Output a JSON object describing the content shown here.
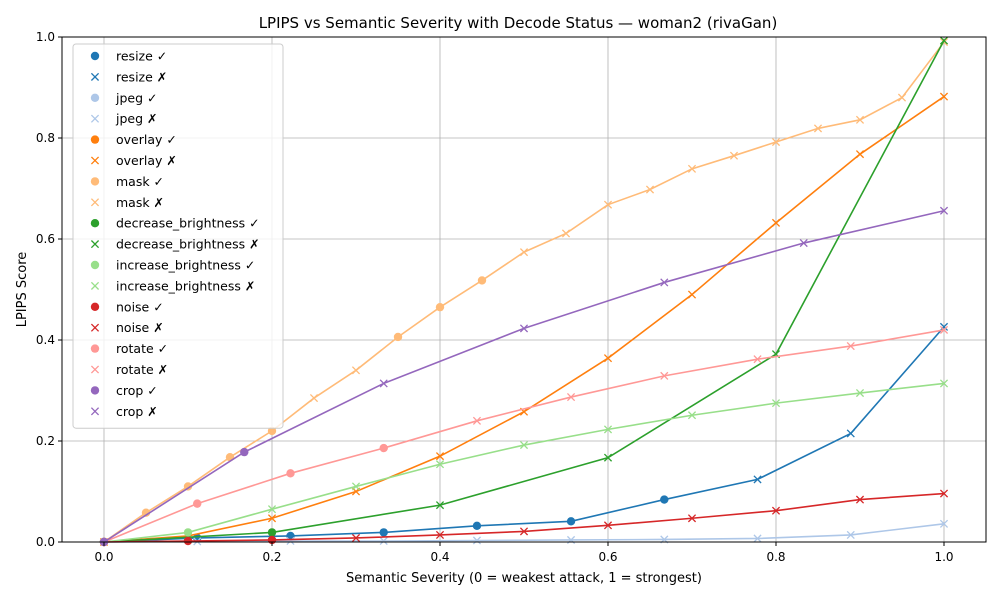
{
  "chart_data": {
    "type": "line",
    "title": "LPIPS vs Semantic Severity with Decode Status — woman2 (rivaGan)",
    "xlabel": "Semantic Severity (0 = weakest attack, 1 = strongest)",
    "ylabel": "LPIPS Score",
    "xlim": [
      -0.05,
      1.05
    ],
    "ylim": [
      0,
      1.0
    ],
    "xticks": [
      "0.0",
      "0.2",
      "0.4",
      "0.6",
      "0.8",
      "1.0"
    ],
    "yticks": [
      "0.0",
      "0.2",
      "0.4",
      "0.6",
      "0.8",
      "1.0"
    ],
    "grid": true,
    "legend_position": "upper-left",
    "series": [
      {
        "name": "resize",
        "color": "#1f77b4",
        "x": [
          0,
          0.111,
          0.222,
          0.333,
          0.444,
          0.556,
          0.667,
          0.778,
          0.889,
          1.0
        ],
        "y": [
          0,
          0.008,
          0.012,
          0.019,
          0.032,
          0.041,
          0.084,
          0.124,
          0.215,
          0.426
        ],
        "decoded": [
          true,
          true,
          true,
          true,
          true,
          true,
          true,
          false,
          false,
          false
        ]
      },
      {
        "name": "jpeg",
        "color": "#aec7e8",
        "x": [
          0,
          0.111,
          0.222,
          0.333,
          0.444,
          0.556,
          0.667,
          0.778,
          0.889,
          1.0
        ],
        "y": [
          0,
          0.001,
          0.002,
          0.002,
          0.003,
          0.004,
          0.005,
          0.007,
          0.014,
          0.036
        ],
        "decoded": [
          true,
          false,
          false,
          false,
          false,
          false,
          false,
          false,
          false,
          false
        ]
      },
      {
        "name": "overlay",
        "color": "#ff7f0e",
        "x": [
          0,
          0.1,
          0.2,
          0.3,
          0.4,
          0.5,
          0.6,
          0.7,
          0.8,
          0.9,
          1.0
        ],
        "y": [
          0,
          0.012,
          0.047,
          0.1,
          0.17,
          0.258,
          0.364,
          0.49,
          0.632,
          0.768,
          0.882
        ],
        "decoded": [
          false,
          false,
          false,
          false,
          false,
          false,
          false,
          false,
          false,
          false,
          false
        ]
      },
      {
        "name": "mask",
        "color": "#ffbb78",
        "x": [
          0,
          0.05,
          0.1,
          0.15,
          0.2,
          0.25,
          0.3,
          0.35,
          0.4,
          0.45,
          0.5,
          0.55,
          0.6,
          0.65,
          0.7,
          0.75,
          0.8,
          0.85,
          0.9,
          0.95,
          1.0
        ],
        "y": [
          0,
          0.058,
          0.11,
          0.168,
          0.22,
          0.285,
          0.34,
          0.406,
          0.465,
          0.518,
          0.574,
          0.611,
          0.668,
          0.698,
          0.739,
          0.765,
          0.792,
          0.819,
          0.836,
          0.88,
          0.99
        ],
        "decoded": [
          true,
          true,
          true,
          true,
          true,
          false,
          false,
          true,
          true,
          true,
          false,
          false,
          false,
          false,
          false,
          false,
          false,
          false,
          false,
          false,
          false
        ]
      },
      {
        "name": "decrease_brightness",
        "color": "#2ca02c",
        "x": [
          0,
          0.2,
          0.4,
          0.6,
          0.8,
          1.0
        ],
        "y": [
          0,
          0.019,
          0.073,
          0.167,
          0.372,
          0.993
        ],
        "decoded": [
          true,
          true,
          false,
          false,
          false,
          false
        ]
      },
      {
        "name": "increase_brightness",
        "color": "#98df8a",
        "x": [
          0,
          0.1,
          0.2,
          0.3,
          0.4,
          0.5,
          0.6,
          0.7,
          0.8,
          0.9,
          1.0
        ],
        "y": [
          0,
          0.019,
          0.065,
          0.11,
          0.154,
          0.192,
          0.223,
          0.251,
          0.275,
          0.295,
          0.314
        ],
        "decoded": [
          true,
          true,
          false,
          false,
          false,
          false,
          false,
          false,
          false,
          false,
          false
        ]
      },
      {
        "name": "noise",
        "color": "#d62728",
        "x": [
          0,
          0.1,
          0.2,
          0.3,
          0.4,
          0.5,
          0.6,
          0.7,
          0.8,
          0.9,
          1.0
        ],
        "y": [
          0,
          0.002,
          0.004,
          0.008,
          0.014,
          0.021,
          0.033,
          0.047,
          0.062,
          0.084,
          0.096
        ],
        "decoded": [
          true,
          true,
          true,
          false,
          false,
          false,
          false,
          false,
          false,
          false,
          false
        ]
      },
      {
        "name": "rotate",
        "color": "#ff9896",
        "x": [
          0,
          0.111,
          0.222,
          0.333,
          0.444,
          0.556,
          0.667,
          0.778,
          0.889,
          1.0
        ],
        "y": [
          0,
          0.076,
          0.136,
          0.186,
          0.24,
          0.287,
          0.329,
          0.362,
          0.388,
          0.42
        ],
        "decoded": [
          true,
          true,
          true,
          true,
          false,
          false,
          false,
          false,
          false,
          false
        ]
      },
      {
        "name": "crop",
        "color": "#9467bd",
        "x": [
          0,
          0.167,
          0.333,
          0.5,
          0.667,
          0.833,
          1.0
        ],
        "y": [
          0,
          0.178,
          0.314,
          0.423,
          0.514,
          0.592,
          0.656
        ],
        "decoded": [
          true,
          true,
          false,
          false,
          false,
          false,
          false
        ]
      }
    ],
    "legend": [
      {
        "label": "resize ✓",
        "color": "#1f77b4",
        "marker": "circle"
      },
      {
        "label": "resize ✗",
        "color": "#1f77b4",
        "marker": "x"
      },
      {
        "label": "jpeg ✓",
        "color": "#aec7e8",
        "marker": "circle"
      },
      {
        "label": "jpeg ✗",
        "color": "#aec7e8",
        "marker": "x"
      },
      {
        "label": "overlay ✓",
        "color": "#ff7f0e",
        "marker": "circle"
      },
      {
        "label": "overlay ✗",
        "color": "#ff7f0e",
        "marker": "x"
      },
      {
        "label": "mask ✓",
        "color": "#ffbb78",
        "marker": "circle"
      },
      {
        "label": "mask ✗",
        "color": "#ffbb78",
        "marker": "x"
      },
      {
        "label": "decrease_brightness ✓",
        "color": "#2ca02c",
        "marker": "circle"
      },
      {
        "label": "decrease_brightness ✗",
        "color": "#2ca02c",
        "marker": "x"
      },
      {
        "label": "increase_brightness ✓",
        "color": "#98df8a",
        "marker": "circle"
      },
      {
        "label": "increase_brightness ✗",
        "color": "#98df8a",
        "marker": "x"
      },
      {
        "label": "noise ✓",
        "color": "#d62728",
        "marker": "circle"
      },
      {
        "label": "noise ✗",
        "color": "#d62728",
        "marker": "x"
      },
      {
        "label": "rotate ✓",
        "color": "#ff9896",
        "marker": "circle"
      },
      {
        "label": "rotate ✗",
        "color": "#ff9896",
        "marker": "x"
      },
      {
        "label": "crop ✓",
        "color": "#9467bd",
        "marker": "circle"
      },
      {
        "label": "crop ✗",
        "color": "#9467bd",
        "marker": "x"
      }
    ]
  }
}
